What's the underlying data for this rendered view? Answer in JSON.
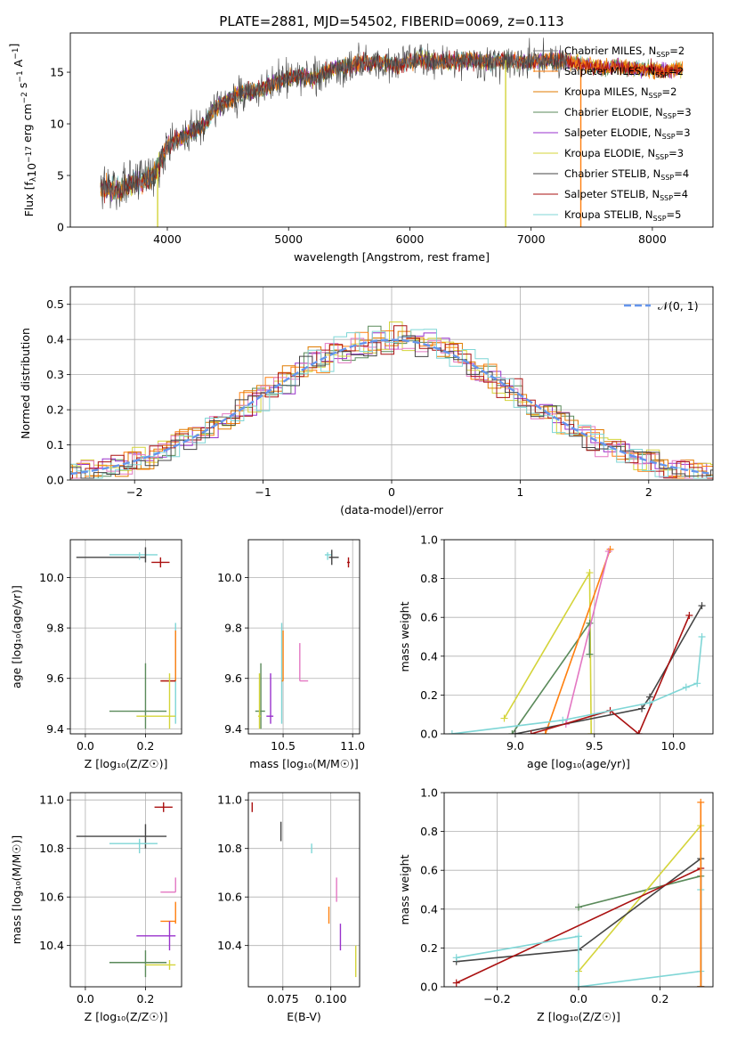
{
  "figure": {
    "title": "PLATE=2881, MJD=54502, FIBERID=0069, z=0.113"
  },
  "colors": {
    "chabrier_miles": "#808080",
    "salpeter_miles": "#ff7f0e",
    "kroupa_miles": "#e07b00",
    "chabrier_elodie": "#5a8a5a",
    "salpeter_elodie": "#9932cc",
    "kroupa_elodie": "#d4d43a",
    "chabrier_stelib": "#444444",
    "salpeter_stelib": "#aa1111",
    "kroupa_stelib": "#7fd6d6",
    "gaussian": "#6495ed",
    "pink": "#e377c2"
  },
  "legend_spectrum": [
    {
      "key": "chabrier_miles",
      "label": "Chabrier MILES, N",
      "sub": "SSP",
      "suffix": "=2"
    },
    {
      "key": "salpeter_miles",
      "label": "Salpeter MILES, N",
      "sub": "SSP",
      "suffix": "=2"
    },
    {
      "key": "kroupa_miles",
      "label": "Kroupa MILES, N",
      "sub": "SSP",
      "suffix": "=2"
    },
    {
      "key": "chabrier_elodie",
      "label": "Chabrier ELODIE, N",
      "sub": "SSP",
      "suffix": "=3"
    },
    {
      "key": "salpeter_elodie",
      "label": "Salpeter ELODIE, N",
      "sub": "SSP",
      "suffix": "=3"
    },
    {
      "key": "kroupa_elodie",
      "label": "Kroupa ELODIE, N",
      "sub": "SSP",
      "suffix": "=3"
    },
    {
      "key": "chabrier_stelib",
      "label": "Chabrier STELIB, N",
      "sub": "SSP",
      "suffix": "=4"
    },
    {
      "key": "salpeter_stelib",
      "label": "Salpeter STELIB, N",
      "sub": "SSP",
      "suffix": "=4"
    },
    {
      "key": "kroupa_stelib",
      "label": "Kroupa STELIB, N",
      "sub": "SSP",
      "suffix": "=5"
    }
  ],
  "legend_hist": {
    "label": "𝒩(0, 1)"
  },
  "chart_data": [
    {
      "id": "spectrum",
      "type": "line",
      "xlabel": "wavelength [Angstrom, rest frame]",
      "ylabel_main": "Flux [f",
      "ylabel_sub": "λ",
      "ylabel_rest": "10",
      "ylabel_exp1": "−17",
      "ylabel_mid": " erg cm",
      "ylabel_exp2": "−2",
      "ylabel_mid2": " s",
      "ylabel_exp3": "−1",
      "ylabel_end": " A",
      "ylabel_exp4": "−1",
      "ylabel_close": "]",
      "xlim": [
        3200,
        8500
      ],
      "ylim": [
        0,
        18.8
      ],
      "xticks": [
        "4000",
        "5000",
        "6000",
        "7000",
        "8000"
      ],
      "xtick_values": [
        4000,
        5000,
        6000,
        7000,
        8000
      ],
      "yticks": [
        "0",
        "5",
        "10",
        "15"
      ],
      "ytick_values": [
        0,
        5,
        10,
        15
      ],
      "continuum": [
        [
          3450,
          3.8
        ],
        [
          3600,
          3.5
        ],
        [
          3700,
          4.2
        ],
        [
          3800,
          4.5
        ],
        [
          3900,
          5.2
        ],
        [
          4000,
          7.8
        ],
        [
          4100,
          8.6
        ],
        [
          4200,
          9.2
        ],
        [
          4300,
          9.8
        ],
        [
          4400,
          11.6
        ],
        [
          4500,
          12.3
        ],
        [
          4600,
          12.9
        ],
        [
          4700,
          13.2
        ],
        [
          4800,
          13.5
        ],
        [
          4900,
          14.0
        ],
        [
          5000,
          14.5
        ],
        [
          5100,
          14.6
        ],
        [
          5200,
          14.4
        ],
        [
          5300,
          15.0
        ],
        [
          5400,
          15.4
        ],
        [
          5500,
          15.6
        ],
        [
          5600,
          15.9
        ],
        [
          5700,
          16.0
        ],
        [
          5800,
          15.9
        ],
        [
          5900,
          15.6
        ],
        [
          6000,
          16.1
        ],
        [
          6100,
          16.3
        ],
        [
          6200,
          16.0
        ],
        [
          6300,
          16.0
        ],
        [
          6400,
          16.1
        ],
        [
          6500,
          16.2
        ],
        [
          6600,
          16.1
        ],
        [
          6700,
          16.0
        ],
        [
          6800,
          16.2
        ],
        [
          6900,
          16.0
        ],
        [
          7000,
          16.0
        ],
        [
          7100,
          16.1
        ],
        [
          7200,
          16.2
        ],
        [
          7300,
          16.0
        ],
        [
          7400,
          15.8
        ],
        [
          7500,
          15.6
        ],
        [
          7600,
          15.4
        ],
        [
          7700,
          15.6
        ],
        [
          7800,
          15.4
        ],
        [
          7900,
          15.3
        ],
        [
          8000,
          15.3
        ],
        [
          8100,
          15.0
        ],
        [
          8200,
          15.3
        ],
        [
          8300,
          15.6
        ]
      ],
      "drops": [
        {
          "x": 3920,
          "key": "kroupa_elodie"
        },
        {
          "x": 6790,
          "key": "kroupa_elodie"
        },
        {
          "x": 7410,
          "key": "salpeter_miles"
        }
      ]
    },
    {
      "id": "histogram",
      "type": "bar",
      "xlabel": "(data-model)/error",
      "ylabel": "Normed distribution",
      "xlim": [
        -2.5,
        2.5
      ],
      "ylim": [
        0,
        0.55
      ],
      "xticks": [
        "−2",
        "−1",
        "0",
        "1",
        "2"
      ],
      "xtick_values": [
        -2,
        -1,
        0,
        1,
        2
      ],
      "yticks": [
        "0.0",
        "0.1",
        "0.2",
        "0.3",
        "0.4",
        "0.5"
      ],
      "ytick_values": [
        0,
        0.1,
        0.2,
        0.3,
        0.4,
        0.5
      ],
      "grid": true,
      "bin_width": 0.1
    },
    {
      "id": "age_vs_Z",
      "type": "scatter",
      "xlabel": "Z [log₁₀(Z/Z☉)]",
      "ylabel": "age  [log₁₀(age/yr)]",
      "xlim": [
        -0.05,
        0.32
      ],
      "ylim": [
        9.38,
        10.15
      ],
      "xticks": [
        "0.0",
        "0.2"
      ],
      "xtick_values": [
        0.0,
        0.2
      ],
      "yticks": [
        "9.4",
        "9.6",
        "9.8",
        "10.0"
      ],
      "ytick_values": [
        9.4,
        9.6,
        9.8,
        10.0
      ],
      "points": [
        {
          "key": "chabrier_stelib",
          "x": 0.2,
          "y": 10.08,
          "xl": -0.03,
          "xh": 0.2,
          "yl": 10.08,
          "yh": 10.08
        },
        {
          "key": "kroupa_stelib",
          "x": 0.18,
          "y": 10.09,
          "xl": 0.08,
          "xh": 0.24,
          "yl": 10.07,
          "yh": 10.1
        },
        {
          "key": "chabrier_stelib",
          "x": 0.2,
          "y": 10.09,
          "xl": 0.2,
          "xh": 0.2,
          "yl": 10.06,
          "yh": 10.12
        },
        {
          "key": "salpeter_stelib",
          "x": 0.25,
          "y": 10.06,
          "xl": 0.22,
          "xh": 0.28,
          "yl": 10.04,
          "yh": 10.08
        },
        {
          "key": "kroupa_stelib",
          "x": 0.3,
          "y": 9.62,
          "xl": 0.3,
          "xh": 0.3,
          "yl": 9.42,
          "yh": 9.82
        },
        {
          "key": "salpeter_miles",
          "x": 0.3,
          "y": 9.59,
          "xl": 0.25,
          "xh": 0.3,
          "yl": 9.59,
          "yh": 9.79
        },
        {
          "key": "salpeter_stelib",
          "x": 0.29,
          "y": 9.59,
          "xl": 0.25,
          "xh": 0.3,
          "yl": 9.59,
          "yh": 9.59
        },
        {
          "key": "chabrier_elodie",
          "x": 0.2,
          "y": 9.47,
          "xl": 0.08,
          "xh": 0.27,
          "yl": 9.4,
          "yh": 9.66
        },
        {
          "key": "kroupa_elodie",
          "x": 0.28,
          "y": 9.45,
          "xl": 0.17,
          "xh": 0.3,
          "yl": 9.4,
          "yh": 9.62
        }
      ]
    },
    {
      "id": "age_vs_mass",
      "type": "scatter",
      "xlabel": "mass [log₁₀(M/M☉)]",
      "ylabel": "",
      "xlim": [
        10.25,
        11.05
      ],
      "ylim": [
        9.38,
        10.15
      ],
      "xticks": [
        "10.5",
        "11.0"
      ],
      "xtick_values": [
        10.5,
        11.0
      ],
      "yticks": [
        "9.4",
        "9.6",
        "9.8",
        "10.0"
      ],
      "ytick_values": [
        9.4,
        9.6,
        9.8,
        10.0
      ],
      "points": [
        {
          "key": "kroupa_stelib",
          "x": 10.82,
          "y": 10.09,
          "xl": 10.8,
          "xh": 10.85,
          "yl": 10.07,
          "yh": 10.1
        },
        {
          "key": "chabrier_stelib",
          "x": 10.85,
          "y": 10.08,
          "xl": 10.83,
          "xh": 10.9,
          "yl": 10.05,
          "yh": 10.11
        },
        {
          "key": "salpeter_stelib",
          "x": 10.97,
          "y": 10.06,
          "xl": 10.96,
          "xh": 10.98,
          "yl": 10.04,
          "yh": 10.08
        },
        {
          "key": "kroupa_stelib",
          "x": 10.49,
          "y": 9.62,
          "xl": 10.49,
          "xh": 10.49,
          "yl": 9.42,
          "yh": 9.82
        },
        {
          "key": "salpeter_miles",
          "x": 10.5,
          "y": 9.59,
          "xl": 10.49,
          "xh": 10.5,
          "yl": 9.59,
          "yh": 9.79
        },
        {
          "key": "pink",
          "x": 10.62,
          "y": 9.59,
          "xl": 10.62,
          "xh": 10.68,
          "yl": 9.59,
          "yh": 9.74
        },
        {
          "key": "chabrier_elodie",
          "x": 10.34,
          "y": 9.47,
          "xl": 10.3,
          "xh": 10.37,
          "yl": 9.4,
          "yh": 9.66
        },
        {
          "key": "kroupa_elodie",
          "x": 10.33,
          "y": 9.45,
          "xl": 10.32,
          "xh": 10.34,
          "yl": 9.4,
          "yh": 9.62
        },
        {
          "key": "salpeter_elodie",
          "x": 10.41,
          "y": 9.45,
          "xl": 10.38,
          "xh": 10.43,
          "yl": 9.42,
          "yh": 9.62
        }
      ]
    },
    {
      "id": "weight_vs_age",
      "type": "line",
      "xlabel": "age  [log₁₀(age/yr)]",
      "ylabel": "mass weight",
      "xlim": [
        8.55,
        10.25
      ],
      "ylim": [
        0,
        1.0
      ],
      "xticks": [
        "9.0",
        "9.5",
        "10.0"
      ],
      "xtick_values": [
        9.0,
        9.5,
        10.0
      ],
      "yticks": [
        "0.0",
        "0.2",
        "0.4",
        "0.6",
        "0.8",
        "1.0"
      ],
      "ytick_values": [
        0,
        0.2,
        0.4,
        0.6,
        0.8,
        1.0
      ],
      "grid": true,
      "series": [
        {
          "key": "kroupa_elodie",
          "x": [
            8.93,
            9.47,
            9.48
          ],
          "y": [
            0.08,
            0.83,
            0.0
          ]
        },
        {
          "key": "chabrier_elodie",
          "x": [
            8.98,
            9.47,
            9.47
          ],
          "y": [
            0.0,
            0.57,
            0.41
          ]
        },
        {
          "key": "salpeter_miles",
          "x": [
            9.19,
            9.6
          ],
          "y": [
            0.0,
            0.95
          ]
        },
        {
          "key": "pink",
          "x": [
            9.32,
            9.59
          ],
          "y": [
            0.05,
            0.94
          ]
        },
        {
          "key": "chabrier_stelib",
          "x": [
            9.0,
            9.8,
            9.85,
            10.18
          ],
          "y": [
            0.0,
            0.13,
            0.19,
            0.66
          ]
        },
        {
          "key": "salpeter_stelib",
          "x": [
            9.1,
            9.6,
            9.78,
            10.1
          ],
          "y": [
            0.0,
            0.12,
            0.0,
            0.61
          ]
        },
        {
          "key": "kroupa_stelib",
          "x": [
            8.6,
            9.3,
            9.85,
            10.08,
            10.15,
            10.18
          ],
          "y": [
            0.0,
            0.07,
            0.16,
            0.24,
            0.26,
            0.5
          ]
        }
      ]
    },
    {
      "id": "mass_vs_Z",
      "type": "scatter",
      "xlabel": "Z [log₁₀(Z/Z☉)]",
      "ylabel": "mass [log₁₀(M/M☉)]",
      "xlim": [
        -0.05,
        0.32
      ],
      "ylim": [
        10.23,
        11.03
      ],
      "xticks": [
        "0.0",
        "0.2"
      ],
      "xtick_values": [
        0.0,
        0.2
      ],
      "yticks": [
        "10.4",
        "10.6",
        "10.8",
        "11.0"
      ],
      "ytick_values": [
        10.4,
        10.6,
        10.8,
        11.0
      ],
      "points": [
        {
          "key": "salpeter_stelib",
          "x": 0.26,
          "y": 10.97,
          "xl": 0.23,
          "xh": 0.29,
          "yl": 10.95,
          "yh": 10.99
        },
        {
          "key": "chabrier_stelib",
          "x": 0.2,
          "y": 10.85,
          "xl": -0.03,
          "xh": 0.27,
          "yl": 10.8,
          "yh": 10.9
        },
        {
          "key": "kroupa_stelib",
          "x": 0.18,
          "y": 10.82,
          "xl": 0.08,
          "xh": 0.24,
          "yl": 10.78,
          "yh": 10.84
        },
        {
          "key": "pink",
          "x": 0.3,
          "y": 10.62,
          "xl": 0.25,
          "xh": 0.3,
          "yl": 10.62,
          "yh": 10.68
        },
        {
          "key": "salpeter_miles",
          "x": 0.3,
          "y": 10.5,
          "xl": 0.25,
          "xh": 0.3,
          "yl": 10.49,
          "yh": 10.58
        },
        {
          "key": "salpeter_elodie",
          "x": 0.28,
          "y": 10.44,
          "xl": 0.17,
          "xh": 0.3,
          "yl": 10.38,
          "yh": 10.5
        },
        {
          "key": "chabrier_elodie",
          "x": 0.2,
          "y": 10.33,
          "xl": 0.08,
          "xh": 0.27,
          "yl": 10.27,
          "yh": 10.38
        },
        {
          "key": "kroupa_elodie",
          "x": 0.28,
          "y": 10.32,
          "xl": 0.2,
          "xh": 0.3,
          "yl": 10.3,
          "yh": 10.34
        }
      ]
    },
    {
      "id": "mass_vs_ebv",
      "type": "scatter",
      "xlabel": "E(B-V)",
      "ylabel": "",
      "xlim": [
        0.057,
        0.115
      ],
      "ylim": [
        10.23,
        11.03
      ],
      "xticks": [
        "0.075",
        "0.100"
      ],
      "xtick_values": [
        0.075,
        0.1
      ],
      "yticks": [
        "10.4",
        "10.6",
        "10.8",
        "11.0"
      ],
      "ytick_values": [
        10.4,
        10.6,
        10.8,
        11.0
      ],
      "points": [
        {
          "key": "salpeter_stelib",
          "x": 0.059,
          "y": 10.97,
          "yl": 10.95,
          "yh": 10.99
        },
        {
          "key": "chabrier_stelib",
          "x": 0.074,
          "y": 10.87,
          "yl": 10.83,
          "yh": 10.91
        },
        {
          "key": "kroupa_stelib",
          "x": 0.09,
          "y": 10.8,
          "yl": 10.78,
          "yh": 10.82
        },
        {
          "key": "pink",
          "x": 0.103,
          "y": 10.63,
          "yl": 10.58,
          "yh": 10.68
        },
        {
          "key": "salpeter_miles",
          "x": 0.099,
          "y": 10.52,
          "yl": 10.49,
          "yh": 10.56
        },
        {
          "key": "salpeter_elodie",
          "x": 0.105,
          "y": 10.43,
          "yl": 10.38,
          "yh": 10.49
        },
        {
          "key": "kroupa_elodie",
          "x": 0.113,
          "y": 10.32,
          "yl": 10.27,
          "yh": 10.4
        }
      ]
    },
    {
      "id": "weight_vs_Z",
      "type": "line",
      "xlabel": "Z [log₁₀(Z/Z☉)]",
      "ylabel": "mass weight",
      "xlim": [
        -0.33,
        0.33
      ],
      "ylim": [
        0,
        1.0
      ],
      "xticks": [
        "−0.2",
        "0.0",
        "0.2"
      ],
      "xtick_values": [
        -0.2,
        0.0,
        0.2
      ],
      "yticks": [
        "0.0",
        "0.2",
        "0.4",
        "0.6",
        "0.8",
        "1.0"
      ],
      "ytick_values": [
        0,
        0.2,
        0.4,
        0.6,
        0.8,
        1.0
      ],
      "grid": true,
      "series": [
        {
          "key": "chabrier_elodie",
          "x": [
            0.0,
            0.3,
            0.3
          ],
          "y": [
            0.41,
            0.57,
            0.0
          ]
        },
        {
          "key": "kroupa_elodie",
          "x": [
            0.0,
            0.3,
            0.3
          ],
          "y": [
            0.08,
            0.83,
            0.0
          ]
        },
        {
          "key": "chabrier_stelib",
          "x": [
            -0.3,
            0.0,
            0.3,
            0.3
          ],
          "y": [
            0.13,
            0.19,
            0.66,
            0.0
          ]
        },
        {
          "key": "salpeter_stelib",
          "x": [
            -0.3,
            0.3,
            0.3
          ],
          "y": [
            0.02,
            0.61,
            0.0
          ]
        },
        {
          "key": "kroupa_stelib",
          "x": [
            -0.3,
            0.0,
            0.0,
            0.3,
            0.3
          ],
          "y": [
            0.15,
            0.26,
            0.0,
            0.08,
            0.5
          ]
        },
        {
          "key": "salpeter_miles",
          "x": [
            0.3,
            0.3
          ],
          "y": [
            0.0,
            0.95
          ]
        }
      ]
    }
  ]
}
